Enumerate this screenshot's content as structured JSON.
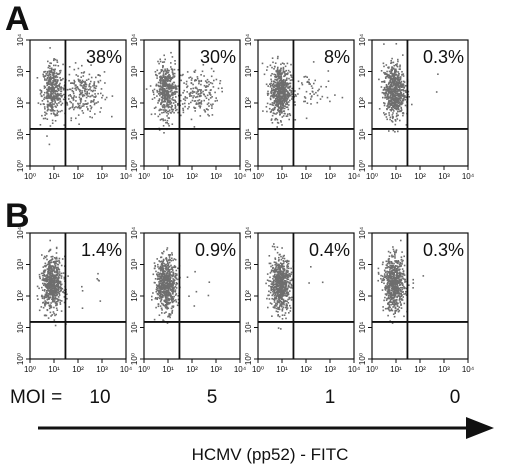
{
  "panels": [
    {
      "letter": "A"
    },
    {
      "letter": "B"
    }
  ],
  "moi": {
    "label": "MOI =",
    "values": [
      "10",
      "5",
      "1",
      "0"
    ]
  },
  "x_axis_title": "HCMV (pp52) - FITC",
  "chart_data": [
    {
      "type": "scatter",
      "panel": "A",
      "moi": "10",
      "percent_label": "38%",
      "upper_right_percent": 38,
      "axes": "log",
      "xlim": [
        1,
        10000
      ],
      "ylim": [
        1,
        10000
      ],
      "xticks": [
        "10⁰",
        "10¹",
        "10²",
        "10³",
        "10⁴"
      ],
      "yticks": [
        "10⁰",
        "10¹",
        "10²",
        "10³",
        "10⁴"
      ],
      "quadrant_gate": {
        "x": 30,
        "y": 15
      }
    },
    {
      "type": "scatter",
      "panel": "A",
      "moi": "5",
      "percent_label": "30%",
      "upper_right_percent": 30,
      "axes": "log",
      "xlim": [
        1,
        10000
      ],
      "ylim": [
        1,
        10000
      ],
      "xticks": [
        "10⁰",
        "10¹",
        "10²",
        "10³",
        "10⁴"
      ],
      "yticks": [
        "10⁰",
        "10¹",
        "10²",
        "10³",
        "10⁴"
      ],
      "quadrant_gate": {
        "x": 30,
        "y": 15
      }
    },
    {
      "type": "scatter",
      "panel": "A",
      "moi": "1",
      "percent_label": "8%",
      "upper_right_percent": 8,
      "axes": "log",
      "xlim": [
        1,
        10000
      ],
      "ylim": [
        1,
        10000
      ],
      "xticks": [
        "10⁰",
        "10¹",
        "10²",
        "10³",
        "10⁴"
      ],
      "yticks": [
        "10⁰",
        "10¹",
        "10²",
        "10³",
        "10⁴"
      ],
      "quadrant_gate": {
        "x": 30,
        "y": 15
      }
    },
    {
      "type": "scatter",
      "panel": "A",
      "moi": "0",
      "percent_label": "0.3%",
      "upper_right_percent": 0.3,
      "axes": "log",
      "xlim": [
        1,
        10000
      ],
      "ylim": [
        1,
        10000
      ],
      "xticks": [
        "10⁰",
        "10¹",
        "10²",
        "10³",
        "10⁴"
      ],
      "yticks": [
        "10⁰",
        "10¹",
        "10²",
        "10³",
        "10⁴"
      ],
      "quadrant_gate": {
        "x": 30,
        "y": 15
      }
    },
    {
      "type": "scatter",
      "panel": "B",
      "moi": "10",
      "percent_label": "1.4%",
      "upper_right_percent": 1.4,
      "axes": "log",
      "xlim": [
        1,
        10000
      ],
      "ylim": [
        1,
        10000
      ],
      "xticks": [
        "10⁰",
        "10¹",
        "10²",
        "10³",
        "10⁴"
      ],
      "yticks": [
        "10⁰",
        "10¹",
        "10²",
        "10³",
        "10⁴"
      ],
      "quadrant_gate": {
        "x": 30,
        "y": 15
      }
    },
    {
      "type": "scatter",
      "panel": "B",
      "moi": "5",
      "percent_label": "0.9%",
      "upper_right_percent": 0.9,
      "axes": "log",
      "xlim": [
        1,
        10000
      ],
      "ylim": [
        1,
        10000
      ],
      "xticks": [
        "10⁰",
        "10¹",
        "10²",
        "10³",
        "10⁴"
      ],
      "yticks": [
        "10⁰",
        "10¹",
        "10²",
        "10³",
        "10⁴"
      ],
      "quadrant_gate": {
        "x": 30,
        "y": 15
      }
    },
    {
      "type": "scatter",
      "panel": "B",
      "moi": "1",
      "percent_label": "0.4%",
      "upper_right_percent": 0.4,
      "axes": "log",
      "xlim": [
        1,
        10000
      ],
      "ylim": [
        1,
        10000
      ],
      "xticks": [
        "10⁰",
        "10¹",
        "10²",
        "10³",
        "10⁴"
      ],
      "yticks": [
        "10⁰",
        "10¹",
        "10²",
        "10³",
        "10⁴"
      ],
      "quadrant_gate": {
        "x": 30,
        "y": 15
      }
    },
    {
      "type": "scatter",
      "panel": "B",
      "moi": "0",
      "percent_label": "0.3%",
      "upper_right_percent": 0.3,
      "axes": "log",
      "xlim": [
        1,
        10000
      ],
      "ylim": [
        1,
        10000
      ],
      "xticks": [
        "10⁰",
        "10¹",
        "10²",
        "10³",
        "10⁴"
      ],
      "yticks": [
        "10⁰",
        "10¹",
        "10²",
        "10³",
        "10⁴"
      ],
      "quadrant_gate": {
        "x": 30,
        "y": 15
      }
    }
  ]
}
